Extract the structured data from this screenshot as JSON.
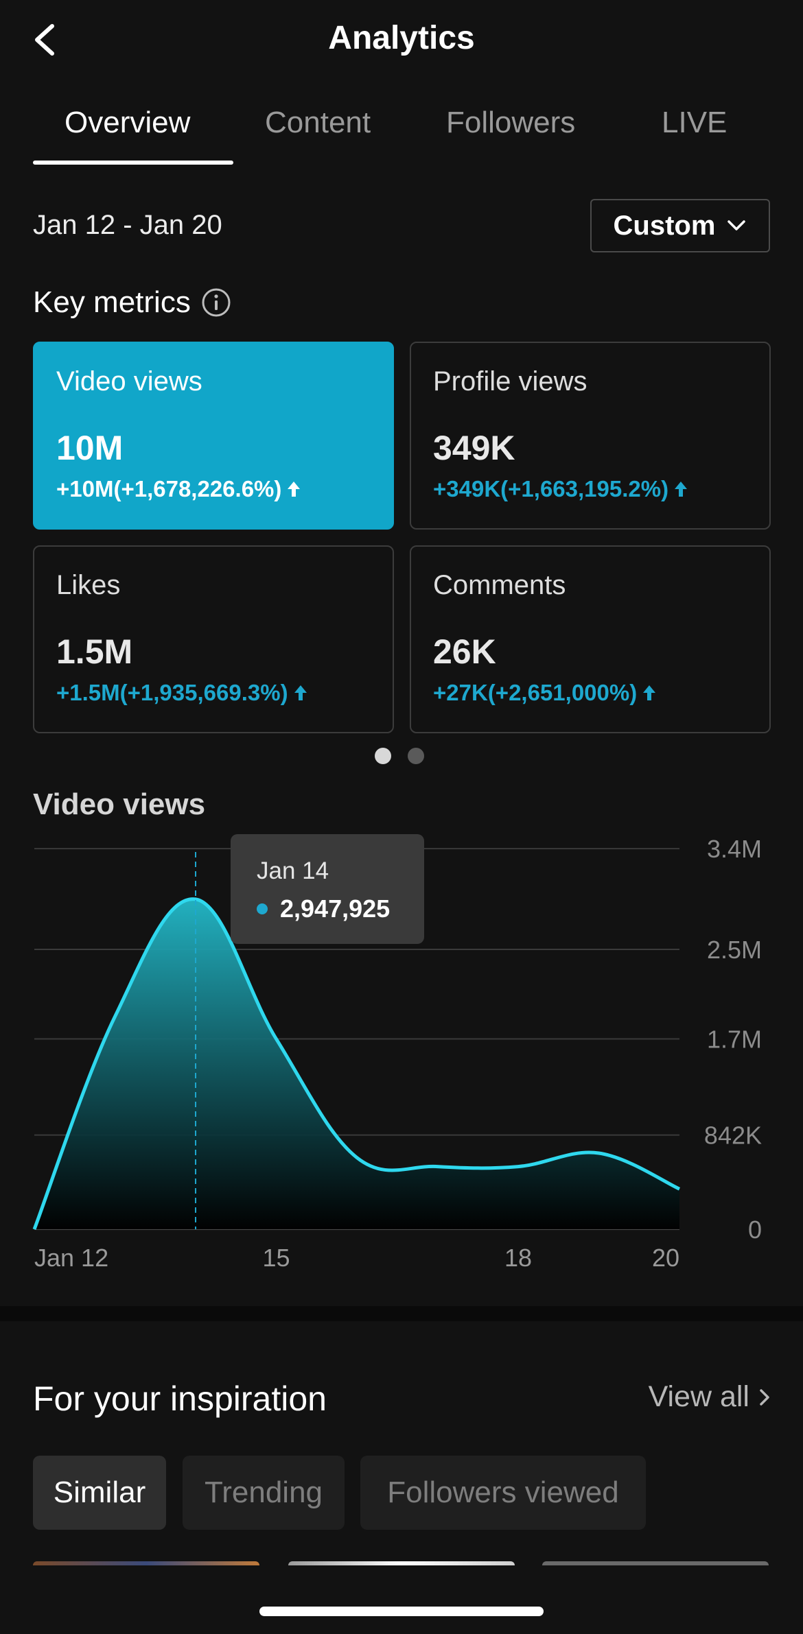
{
  "header": {
    "title": "Analytics",
    "back_icon": "chevron-left-icon"
  },
  "tabs": [
    {
      "label": "Overview",
      "active": true
    },
    {
      "label": "Content",
      "active": false
    },
    {
      "label": "Followers",
      "active": false
    },
    {
      "label": "LIVE",
      "active": false
    }
  ],
  "date_filter": {
    "range": "Jan 12 - Jan 20",
    "selector_label": "Custom",
    "selector_icon": "chevron-down-icon"
  },
  "key_metrics": {
    "title": "Key metrics",
    "info_icon": "info-icon",
    "cards": [
      {
        "label": "Video views",
        "value": "10M",
        "change": "+10M(+1,678,226.6%)",
        "trend_icon": "arrow-up-icon",
        "active": true
      },
      {
        "label": "Profile views",
        "value": "349K",
        "change": "+349K(+1,663,195.2%)",
        "trend_icon": "arrow-up-icon",
        "active": false
      },
      {
        "label": "Likes",
        "value": "1.5M",
        "change": "+1.5M(+1,935,669.3%)",
        "trend_icon": "arrow-up-icon",
        "active": false
      },
      {
        "label": "Comments",
        "value": "26K",
        "change": "+27K(+2,651,000%)",
        "trend_icon": "arrow-up-icon",
        "active": false
      }
    ],
    "pager": {
      "pages": 2,
      "current": 1
    }
  },
  "chart_data": {
    "type": "area",
    "title": "Video views",
    "x": [
      "Jan 12",
      "Jan 13",
      "Jan 14",
      "Jan 15",
      "Jan 16",
      "Jan 17",
      "Jan 18",
      "Jan 19",
      "Jan 20"
    ],
    "x_tick_labels": [
      "Jan 12",
      "15",
      "18",
      "20"
    ],
    "x_tick_positions": [
      "Jan 12",
      "Jan 15",
      "Jan 18",
      "Jan 20"
    ],
    "values": [
      0,
      1900000,
      2947925,
      1700000,
      640000,
      560000,
      560000,
      680000,
      360000
    ],
    "y_ticks": [
      0,
      842000,
      1700000,
      2500000,
      3400000
    ],
    "y_tick_labels": [
      "0",
      "842K",
      "1.7M",
      "2.5M",
      "3.4M"
    ],
    "ylim": [
      0,
      3370000
    ],
    "grid": true,
    "line_color": "#2fd8ee",
    "tooltip": {
      "date": "Jan 14",
      "value": "2,947,925"
    }
  },
  "inspiration": {
    "title": "For your inspiration",
    "view_all": "View all",
    "view_all_icon": "chevron-right-icon",
    "chips": [
      {
        "label": "Similar",
        "active": true
      },
      {
        "label": "Trending",
        "active": false
      },
      {
        "label": "Followers viewed",
        "active": false
      }
    ]
  },
  "colors": {
    "background": "#121212",
    "accent": "#11a6c9",
    "positive_change": "#1ea8cf"
  }
}
